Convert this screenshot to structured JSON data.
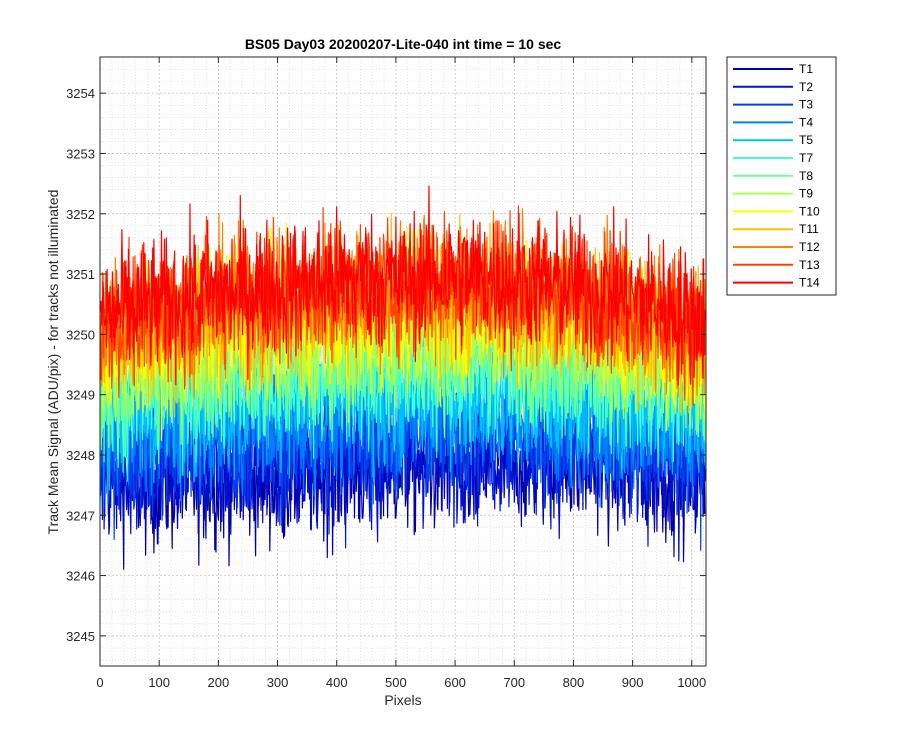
{
  "chart_data": {
    "type": "line",
    "title": "BS05 Day03 20200207-Lite-040 int time = 10 sec",
    "xlabel": "Pixels",
    "ylabel": "Track Mean Signal (ADU/pix) - for tracks not illuminated",
    "xlim": [
      0,
      1024
    ],
    "ylim": [
      3244.5,
      3254.6
    ],
    "xticks": [
      0,
      100,
      200,
      300,
      400,
      500,
      600,
      700,
      800,
      900,
      1000
    ],
    "yticks": [
      3245,
      3246,
      3247,
      3248,
      3249,
      3250,
      3251,
      3252,
      3253,
      3254
    ],
    "grid": true,
    "minor_grid": true,
    "legend_location": "outside-top-right",
    "samples_per_series": 1024,
    "noise_amplitude": 1.0,
    "series": [
      {
        "name": "T1",
        "color": "#0000aa",
        "mean_by_100px": [
          3247.6,
          3247.5,
          3247.6,
          3247.6,
          3247.7,
          3247.8,
          3247.8,
          3247.9,
          3247.9,
          3247.7,
          3247.6
        ]
      },
      {
        "name": "T2",
        "color": "#0010d0",
        "mean_by_100px": [
          3247.8,
          3247.8,
          3247.8,
          3247.9,
          3247.9,
          3248.0,
          3248.0,
          3248.1,
          3248.1,
          3247.9,
          3247.8
        ]
      },
      {
        "name": "T3",
        "color": "#0040ee",
        "mean_by_100px": [
          3248.1,
          3248.1,
          3248.2,
          3248.2,
          3248.3,
          3248.3,
          3248.4,
          3248.4,
          3248.3,
          3248.2,
          3248.1
        ]
      },
      {
        "name": "T4",
        "color": "#0080ff",
        "mean_by_100px": [
          3248.4,
          3248.5,
          3248.5,
          3248.6,
          3248.6,
          3248.7,
          3248.7,
          3248.7,
          3248.6,
          3248.5,
          3248.4
        ]
      },
      {
        "name": "T5",
        "color": "#00c0ff",
        "mean_by_100px": [
          3248.7,
          3248.8,
          3248.9,
          3248.9,
          3249.0,
          3249.0,
          3249.1,
          3249.0,
          3248.9,
          3248.8,
          3248.7
        ]
      },
      {
        "name": "T7",
        "color": "#40ffd0",
        "mean_by_100px": [
          3249.0,
          3249.1,
          3249.2,
          3249.3,
          3249.3,
          3249.4,
          3249.4,
          3249.4,
          3249.3,
          3249.2,
          3249.0
        ]
      },
      {
        "name": "T8",
        "color": "#70ff90",
        "mean_by_100px": [
          3249.3,
          3249.4,
          3249.5,
          3249.6,
          3249.6,
          3249.7,
          3249.7,
          3249.7,
          3249.6,
          3249.5,
          3249.3
        ]
      },
      {
        "name": "T9",
        "color": "#b0ff50",
        "mean_by_100px": [
          3249.5,
          3249.6,
          3249.8,
          3249.9,
          3249.9,
          3250.0,
          3250.0,
          3250.0,
          3249.9,
          3249.7,
          3249.5
        ]
      },
      {
        "name": "T10",
        "color": "#ffff00",
        "mean_by_100px": [
          3249.7,
          3249.9,
          3250.1,
          3250.2,
          3250.2,
          3250.3,
          3250.3,
          3250.3,
          3250.2,
          3250.0,
          3249.7
        ]
      },
      {
        "name": "T11",
        "color": "#ffc000",
        "mean_by_100px": [
          3249.9,
          3250.1,
          3250.3,
          3250.4,
          3250.5,
          3250.5,
          3250.6,
          3250.5,
          3250.4,
          3250.2,
          3249.9
        ]
      },
      {
        "name": "T12",
        "color": "#ff8000",
        "mean_by_100px": [
          3250.1,
          3250.3,
          3250.5,
          3250.6,
          3250.7,
          3250.7,
          3250.8,
          3250.7,
          3250.6,
          3250.4,
          3250.1
        ]
      },
      {
        "name": "T13",
        "color": "#ff4000",
        "mean_by_100px": [
          3250.2,
          3250.4,
          3250.6,
          3250.7,
          3250.8,
          3250.8,
          3250.9,
          3250.8,
          3250.7,
          3250.5,
          3250.2
        ]
      },
      {
        "name": "T14",
        "color": "#ff0000",
        "mean_by_100px": [
          3250.3,
          3250.5,
          3250.7,
          3250.8,
          3250.9,
          3250.9,
          3251.0,
          3250.9,
          3250.8,
          3250.6,
          3250.3
        ]
      }
    ]
  }
}
